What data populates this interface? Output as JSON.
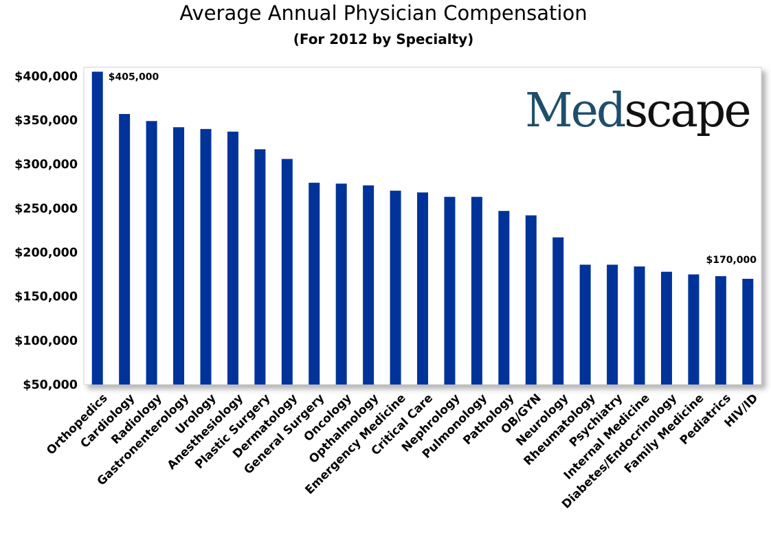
{
  "chart_data": {
    "type": "bar",
    "title": "Average Annual Physician Compensation",
    "subtitle": "(For 2012 by Specialty)",
    "xlabel": "",
    "ylabel": "",
    "ylim": [
      50000,
      410000
    ],
    "ytick_values": [
      50000,
      100000,
      150000,
      200000,
      250000,
      300000,
      350000,
      400000
    ],
    "ytick_labels": [
      "$50,000",
      "$100,000",
      "$150,000",
      "$200,000",
      "$250,000",
      "$300,000",
      "$350,000",
      "$400,000"
    ],
    "grid": false,
    "bar_color": "#003399",
    "categories": [
      "Orthopedics",
      "Cardiology",
      "Radiology",
      "Gastronenterology",
      "Urology",
      "Anesthesiology",
      "Plastic Surgery",
      "Dermatology",
      "General Surgery",
      "Oncology",
      "Opthalmology",
      "Emergency Medicine",
      "Critical Care",
      "Nephrology",
      "Pulmonology",
      "Pathology",
      "OB/GYN",
      "Neurology",
      "Rheumatology",
      "Psychiatry",
      "Internal Medicine",
      "Diabetes/Endocrinology",
      "Family Medicine",
      "Pediatrics",
      "HIV/ID"
    ],
    "values": [
      405000,
      357000,
      349000,
      342000,
      340000,
      337000,
      317000,
      306000,
      279000,
      278000,
      276000,
      270000,
      268000,
      263000,
      263000,
      247000,
      242000,
      217000,
      186000,
      186000,
      184000,
      178000,
      175000,
      173000,
      170000
    ],
    "annotations": [
      {
        "index": 0,
        "text": "$405,000"
      },
      {
        "index": 24,
        "text": "$170,000"
      }
    ]
  },
  "logo": {
    "med": "Med",
    "scape": "scape"
  }
}
